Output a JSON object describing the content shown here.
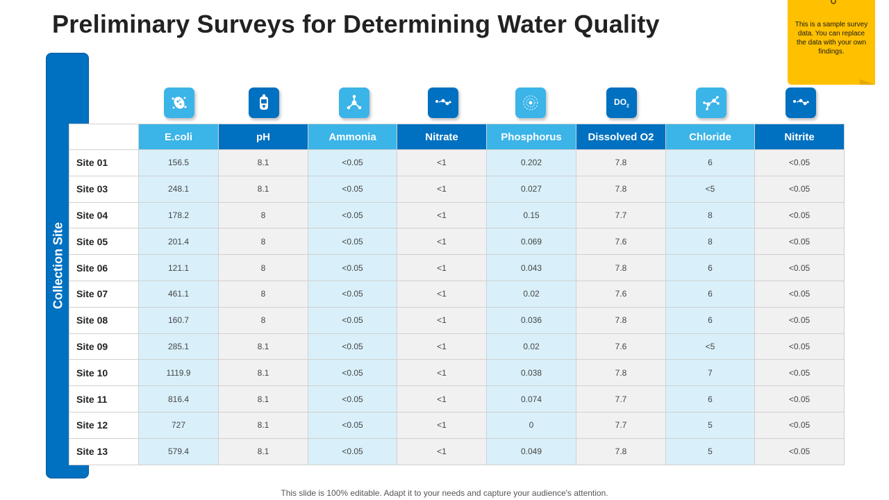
{
  "title": "Preliminary Surveys for Determining Water Quality",
  "note": "This is a sample survey data. You can replace the data with your own findings.",
  "side_label": "Collection Site",
  "footer": "This slide is 100% editable. Adapt it to your needs and capture your audience's attention.",
  "colors": {
    "light_blue": "#3bb4e8",
    "dark_blue": "#0070c0",
    "sticky_yellow": "#ffc000"
  },
  "icons": [
    {
      "name": "bacteria-icon",
      "text": ""
    },
    {
      "name": "ph-meter-icon",
      "text": ""
    },
    {
      "name": "ammonia-molecule-icon",
      "text": ""
    },
    {
      "name": "nitrate-molecule-icon",
      "text": ""
    },
    {
      "name": "phosphorus-atom-icon",
      "text": ""
    },
    {
      "name": "dissolved-oxygen-icon",
      "text": "DO2"
    },
    {
      "name": "chloride-molecule-icon",
      "text": ""
    },
    {
      "name": "nitrite-molecule-icon",
      "text": ""
    }
  ],
  "table": {
    "headers": [
      "E.coli",
      "pH",
      "Ammonia",
      "Nitrate",
      "Phosphorus",
      "Dissolved O2",
      "Chloride",
      "Nitrite"
    ],
    "rows": [
      {
        "site": "Site 01",
        "values": [
          "156.5",
          "8.1",
          "<0.05",
          "<1",
          "0.202",
          "7.8",
          "6",
          "<0.05"
        ]
      },
      {
        "site": "Site 03",
        "values": [
          "248.1",
          "8.1",
          "<0.05",
          "<1",
          "0.027",
          "7.8",
          "<5",
          "<0.05"
        ]
      },
      {
        "site": "Site 04",
        "values": [
          "178.2",
          "8",
          "<0.05",
          "<1",
          "0.15",
          "7.7",
          "8",
          "<0.05"
        ]
      },
      {
        "site": "Site 05",
        "values": [
          "201.4",
          "8",
          "<0.05",
          "<1",
          "0.069",
          "7.6",
          "8",
          "<0.05"
        ]
      },
      {
        "site": "Site 06",
        "values": [
          "121.1",
          "8",
          "<0.05",
          "<1",
          "0.043",
          "7.8",
          "6",
          "<0.05"
        ]
      },
      {
        "site": "Site 07",
        "values": [
          "461.1",
          "8",
          "<0.05",
          "<1",
          "0.02",
          "7.6",
          "6",
          "<0.05"
        ]
      },
      {
        "site": "Site 08",
        "values": [
          "160.7",
          "8",
          "<0.05",
          "<1",
          "0.036",
          "7.8",
          "6",
          "<0.05"
        ]
      },
      {
        "site": "Site 09",
        "values": [
          "285.1",
          "8.1",
          "<0.05",
          "<1",
          "0.02",
          "7.6",
          "<5",
          "<0.05"
        ]
      },
      {
        "site": "Site 10",
        "values": [
          "1119.9",
          "8.1",
          "<0.05",
          "<1",
          "0.038",
          "7.8",
          "7",
          "<0.05"
        ]
      },
      {
        "site": "Site 11",
        "values": [
          "816.4",
          "8.1",
          "<0.05",
          "<1",
          "0.074",
          "7.7",
          "6",
          "<0.05"
        ]
      },
      {
        "site": "Site 12",
        "values": [
          "727",
          "8.1",
          "<0.05",
          "<1",
          "0",
          "7.7",
          "5",
          "<0.05"
        ]
      },
      {
        "site": "Site 13",
        "values": [
          "579.4",
          "8.1",
          "<0.05",
          "<1",
          "0.049",
          "7.8",
          "5",
          "<0.05"
        ]
      }
    ]
  }
}
